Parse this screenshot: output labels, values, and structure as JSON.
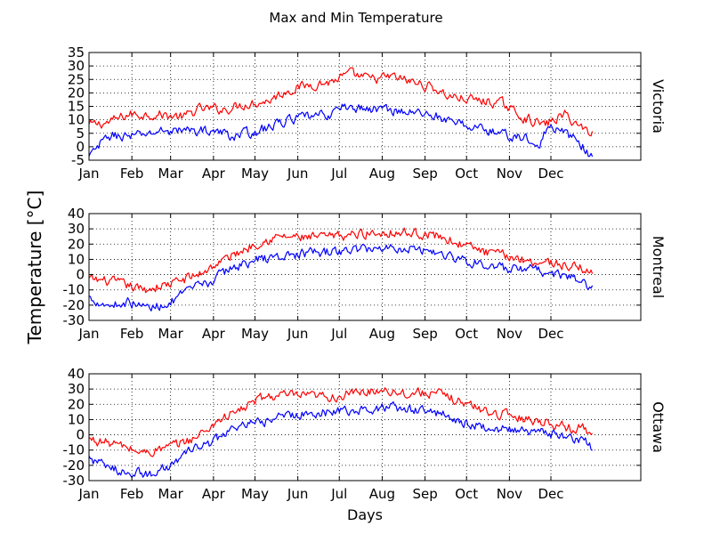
{
  "figure": {
    "title": "Max and Min Temperature",
    "ylabel": "Temperature [°C]",
    "xlabel": "Days"
  },
  "colors": {
    "max": "#ff0000",
    "min": "#0000ff",
    "grid": "#000000",
    "axis": "#000000"
  },
  "chart_data": [
    {
      "type": "line",
      "city": "Victoria",
      "month_labels": [
        "Jan",
        "Feb",
        "Mar",
        "Apr",
        "May",
        "Jun",
        "Jul",
        "Aug",
        "Sep",
        "Oct",
        "Nov",
        "Dec"
      ],
      "month_start_days": [
        1,
        32,
        60,
        91,
        121,
        152,
        182,
        213,
        244,
        274,
        305,
        335
      ],
      "xlim": [
        1,
        400
      ],
      "ylim": [
        -5,
        35
      ],
      "yticks": [
        -5,
        0,
        5,
        10,
        15,
        20,
        25,
        30,
        35
      ],
      "grid": true,
      "series": [
        {
          "key": "max",
          "anchors": [
            [
              1,
              8
            ],
            [
              15,
              9
            ],
            [
              30,
              12
            ],
            [
              50,
              12
            ],
            [
              70,
              11
            ],
            [
              80,
              14
            ],
            [
              100,
              14
            ],
            [
              115,
              16
            ],
            [
              130,
              17
            ],
            [
              145,
              21
            ],
            [
              160,
              23
            ],
            [
              175,
              24
            ],
            [
              190,
              27
            ],
            [
              205,
              25
            ],
            [
              220,
              26
            ],
            [
              235,
              24
            ],
            [
              250,
              22
            ],
            [
              260,
              19
            ],
            [
              270,
              18
            ],
            [
              285,
              17
            ],
            [
              300,
              16
            ],
            [
              315,
              11
            ],
            [
              330,
              8
            ],
            [
              345,
              12
            ],
            [
              355,
              8
            ],
            [
              365,
              5
            ]
          ]
        },
        {
          "key": "min",
          "anchors": [
            [
              1,
              -4
            ],
            [
              15,
              4
            ],
            [
              35,
              4
            ],
            [
              55,
              6
            ],
            [
              75,
              6
            ],
            [
              90,
              6
            ],
            [
              105,
              4
            ],
            [
              125,
              6
            ],
            [
              145,
              10
            ],
            [
              160,
              11
            ],
            [
              175,
              12
            ],
            [
              185,
              15
            ],
            [
              200,
              14
            ],
            [
              215,
              14
            ],
            [
              230,
              13
            ],
            [
              250,
              12
            ],
            [
              262,
              9
            ],
            [
              275,
              8
            ],
            [
              290,
              6
            ],
            [
              305,
              4
            ],
            [
              318,
              3
            ],
            [
              325,
              -1
            ],
            [
              332,
              7
            ],
            [
              345,
              5
            ],
            [
              355,
              2
            ],
            [
              365,
              -4
            ]
          ]
        }
      ]
    },
    {
      "type": "line",
      "city": "Montreal",
      "month_labels": [
        "Jan",
        "Feb",
        "Mar",
        "Apr",
        "May",
        "Jun",
        "Jul",
        "Aug",
        "Sep",
        "Oct",
        "Nov",
        "Dec"
      ],
      "month_start_days": [
        1,
        32,
        60,
        91,
        121,
        152,
        182,
        213,
        244,
        274,
        305,
        335
      ],
      "xlim": [
        1,
        400
      ],
      "ylim": [
        -30,
        40
      ],
      "yticks": [
        -30,
        -20,
        -10,
        0,
        10,
        20,
        30,
        40
      ],
      "grid": true,
      "series": [
        {
          "key": "max",
          "anchors": [
            [
              1,
              -3
            ],
            [
              20,
              -5
            ],
            [
              40,
              -10
            ],
            [
              60,
              -6
            ],
            [
              80,
              0
            ],
            [
              95,
              8
            ],
            [
              110,
              15
            ],
            [
              125,
              22
            ],
            [
              140,
              25
            ],
            [
              160,
              24
            ],
            [
              180,
              25
            ],
            [
              200,
              27
            ],
            [
              220,
              28
            ],
            [
              240,
              27
            ],
            [
              255,
              25
            ],
            [
              270,
              20
            ],
            [
              290,
              14
            ],
            [
              305,
              12
            ],
            [
              320,
              9
            ],
            [
              335,
              8
            ],
            [
              350,
              5
            ],
            [
              360,
              4
            ],
            [
              365,
              0
            ]
          ]
        },
        {
          "key": "min",
          "anchors": [
            [
              1,
              -15
            ],
            [
              15,
              -20
            ],
            [
              30,
              -18
            ],
            [
              45,
              -22
            ],
            [
              60,
              -18
            ],
            [
              75,
              -10
            ],
            [
              90,
              -4
            ],
            [
              105,
              5
            ],
            [
              125,
              10
            ],
            [
              140,
              12
            ],
            [
              160,
              14
            ],
            [
              180,
              15
            ],
            [
              200,
              17
            ],
            [
              220,
              18
            ],
            [
              240,
              17
            ],
            [
              255,
              14
            ],
            [
              270,
              10
            ],
            [
              285,
              7
            ],
            [
              305,
              3
            ],
            [
              320,
              3
            ],
            [
              335,
              1
            ],
            [
              350,
              -2
            ],
            [
              360,
              -6
            ],
            [
              365,
              -10
            ]
          ]
        }
      ]
    },
    {
      "type": "line",
      "city": "Ottawa",
      "month_labels": [
        "Jan",
        "Feb",
        "Mar",
        "Apr",
        "May",
        "Jun",
        "Jul",
        "Aug",
        "Sep",
        "Oct",
        "Nov",
        "Dec"
      ],
      "month_start_days": [
        1,
        32,
        60,
        91,
        121,
        152,
        182,
        213,
        244,
        274,
        305,
        335
      ],
      "xlim": [
        1,
        400
      ],
      "ylim": [
        -30,
        40
      ],
      "yticks": [
        -30,
        -20,
        -10,
        0,
        10,
        20,
        30,
        40
      ],
      "grid": true,
      "series": [
        {
          "key": "max",
          "anchors": [
            [
              1,
              -3
            ],
            [
              20,
              -6
            ],
            [
              40,
              -12
            ],
            [
              60,
              -8
            ],
            [
              80,
              -1
            ],
            [
              95,
              10
            ],
            [
              110,
              16
            ],
            [
              125,
              24
            ],
            [
              140,
              26
            ],
            [
              160,
              25
            ],
            [
              180,
              25
            ],
            [
              200,
              28
            ],
            [
              215,
              30
            ],
            [
              230,
              27
            ],
            [
              245,
              28
            ],
            [
              260,
              25
            ],
            [
              275,
              20
            ],
            [
              290,
              15
            ],
            [
              305,
              13
            ],
            [
              320,
              10
            ],
            [
              335,
              8
            ],
            [
              350,
              4
            ],
            [
              360,
              5
            ],
            [
              365,
              -2
            ]
          ]
        },
        {
          "key": "min",
          "anchors": [
            [
              1,
              -15
            ],
            [
              15,
              -22
            ],
            [
              30,
              -24
            ],
            [
              45,
              -26
            ],
            [
              60,
              -20
            ],
            [
              75,
              -10
            ],
            [
              90,
              -5
            ],
            [
              105,
              4
            ],
            [
              125,
              8
            ],
            [
              140,
              12
            ],
            [
              160,
              14
            ],
            [
              180,
              16
            ],
            [
              200,
              16
            ],
            [
              215,
              18
            ],
            [
              230,
              17
            ],
            [
              250,
              15
            ],
            [
              265,
              11
            ],
            [
              280,
              6
            ],
            [
              300,
              4
            ],
            [
              315,
              2
            ],
            [
              330,
              1
            ],
            [
              345,
              0
            ],
            [
              360,
              -5
            ],
            [
              365,
              -10
            ]
          ]
        }
      ]
    }
  ]
}
